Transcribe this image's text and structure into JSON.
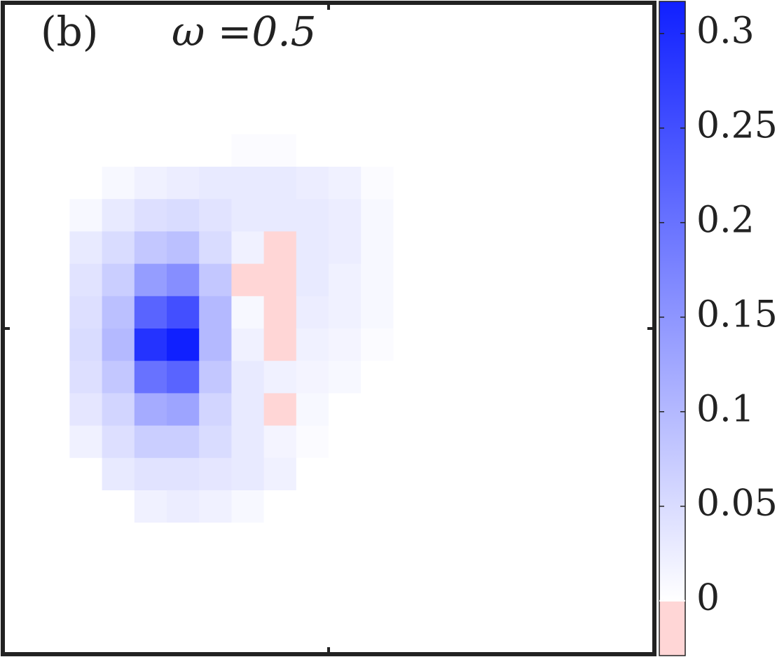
{
  "chart_data": {
    "type": "heatmap",
    "annotations": [
      "(b)",
      "ω =0.5"
    ],
    "z": [
      [
        0,
        0,
        0,
        0,
        0,
        0,
        0,
        0,
        0,
        0,
        0,
        0,
        0,
        0,
        0,
        0,
        0,
        0,
        0,
        0
      ],
      [
        0,
        0,
        0,
        0,
        0,
        0,
        0,
        0,
        0,
        0,
        0,
        0,
        0,
        0,
        0,
        0,
        0,
        0,
        0,
        0
      ],
      [
        0,
        0,
        0,
        0,
        0,
        0,
        0,
        0,
        0,
        0,
        0,
        0,
        0,
        0,
        0,
        0,
        0,
        0,
        0,
        0
      ],
      [
        0,
        0,
        0,
        0,
        0,
        0,
        0,
        0,
        0,
        0,
        0,
        0,
        0,
        0,
        0,
        0,
        0,
        0,
        0,
        0
      ],
      [
        0,
        0,
        0,
        0,
        0,
        0,
        0,
        0.005,
        0.005,
        0,
        0,
        0,
        0,
        0,
        0,
        0,
        0,
        0,
        0,
        0
      ],
      [
        0,
        0,
        0,
        0.01,
        0.02,
        0.025,
        0.03,
        0.03,
        0.03,
        0.025,
        0.02,
        0.005,
        0,
        0,
        0,
        0,
        0,
        0,
        0,
        0
      ],
      [
        0,
        0,
        0.01,
        0.03,
        0.045,
        0.05,
        0.04,
        0.03,
        0.03,
        0.03,
        0.025,
        0.01,
        0,
        0,
        0,
        0,
        0,
        0,
        0,
        0
      ],
      [
        0,
        0,
        0.03,
        0.05,
        0.08,
        0.09,
        0.05,
        0.02,
        -0.01,
        0.03,
        0.025,
        0.01,
        0,
        0,
        0,
        0,
        0,
        0,
        0,
        0
      ],
      [
        0,
        0,
        0.04,
        0.07,
        0.14,
        0.16,
        0.08,
        -0.01,
        -0.01,
        0.03,
        0.02,
        0.01,
        0,
        0,
        0,
        0,
        0,
        0,
        0,
        0
      ],
      [
        0,
        0,
        0.045,
        0.09,
        0.22,
        0.25,
        0.1,
        0.01,
        -0.01,
        0.025,
        0.02,
        0.01,
        0,
        0,
        0,
        0,
        0,
        0,
        0,
        0
      ],
      [
        0,
        0,
        0.05,
        0.1,
        0.29,
        0.318,
        0.1,
        0.02,
        -0.01,
        0.02,
        0.015,
        0.005,
        0,
        0,
        0,
        0,
        0,
        0,
        0,
        0
      ],
      [
        0,
        0,
        0.045,
        0.08,
        0.2,
        0.22,
        0.08,
        0.03,
        0.02,
        0.015,
        0.01,
        0,
        0,
        0,
        0,
        0,
        0,
        0,
        0,
        0
      ],
      [
        0,
        0,
        0.035,
        0.06,
        0.12,
        0.13,
        0.06,
        0.03,
        -0.01,
        0.01,
        0,
        0,
        0,
        0,
        0,
        0,
        0,
        0,
        0,
        0
      ],
      [
        0,
        0,
        0.02,
        0.045,
        0.07,
        0.07,
        0.05,
        0.03,
        0.015,
        0.005,
        0,
        0,
        0,
        0,
        0,
        0,
        0,
        0,
        0,
        0
      ],
      [
        0,
        0,
        0,
        0.03,
        0.04,
        0.04,
        0.035,
        0.03,
        0.02,
        0,
        0,
        0,
        0,
        0,
        0,
        0,
        0,
        0,
        0,
        0
      ],
      [
        0,
        0,
        0,
        0,
        0.02,
        0.025,
        0.02,
        0.01,
        0,
        0,
        0,
        0,
        0,
        0,
        0,
        0,
        0,
        0,
        0,
        0
      ],
      [
        0,
        0,
        0,
        0,
        0,
        0,
        0,
        0,
        0,
        0,
        0,
        0,
        0,
        0,
        0,
        0,
        0,
        0,
        0,
        0
      ],
      [
        0,
        0,
        0,
        0,
        0,
        0,
        0,
        0,
        0,
        0,
        0,
        0,
        0,
        0,
        0,
        0,
        0,
        0,
        0,
        0
      ],
      [
        0,
        0,
        0,
        0,
        0,
        0,
        0,
        0,
        0,
        0,
        0,
        0,
        0,
        0,
        0,
        0,
        0,
        0,
        0,
        0
      ],
      [
        0,
        0,
        0,
        0,
        0,
        0,
        0,
        0,
        0,
        0,
        0,
        0,
        0,
        0,
        0,
        0,
        0,
        0,
        0,
        0
      ]
    ],
    "clim": [
      -0.029,
      0.317
    ],
    "cticks": [
      0,
      0.05,
      0.1,
      0.15,
      0.2,
      0.25,
      0.3
    ],
    "colors": {
      "negative": "#ffd6d6",
      "low": "#ffffff",
      "high": "#1020ff"
    }
  }
}
